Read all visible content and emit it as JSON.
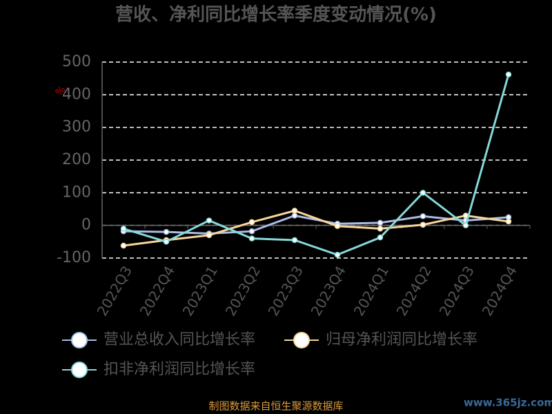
{
  "chart_data": {
    "type": "line",
    "title": "营收、净利同比增长率季度变动情况(%)",
    "y_label": "%",
    "categories": [
      "2022Q3",
      "2022Q4",
      "2023Q1",
      "2023Q2",
      "2023Q3",
      "2023Q4",
      "2024Q1",
      "2024Q2",
      "2024Q3",
      "2024Q4"
    ],
    "series": [
      {
        "name": "营业总收入同比增长率",
        "color": "#a9bde6",
        "values": [
          -18,
          -20,
          -25,
          -18,
          30,
          5,
          8,
          28,
          15,
          25
        ]
      },
      {
        "name": "归母净利润同比增长率",
        "color": "#f9d59b",
        "values": [
          -62,
          -45,
          -30,
          10,
          45,
          -2,
          -10,
          2,
          30,
          12
        ]
      },
      {
        "name": "扣非净利润同比增长率",
        "color": "#86d9d9",
        "values": [
          -10,
          -50,
          15,
          -40,
          -45,
          -90,
          -37,
          100,
          0,
          462
        ]
      }
    ],
    "ylim": [
      -100,
      500
    ],
    "yticks": [
      -100,
      0,
      100,
      200,
      300,
      400,
      500
    ],
    "grid": true,
    "source": "制图数据来自恒生聚源数据库",
    "watermark": "www.365jz.com"
  }
}
